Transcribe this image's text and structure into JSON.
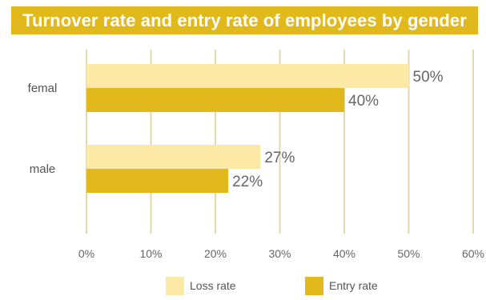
{
  "chart_data": {
    "type": "bar",
    "orientation": "horizontal",
    "title": "Turnover rate and entry rate of employees by gender",
    "categories": [
      "femal",
      "male"
    ],
    "series": [
      {
        "name": "Loss rate",
        "values": [
          50,
          27
        ],
        "color": "#fde9a6"
      },
      {
        "name": "Entry rate",
        "values": [
          40,
          22
        ],
        "color": "#e2b91c"
      }
    ],
    "data_labels": [
      [
        "50%",
        "27%"
      ],
      [
        "40%",
        "22%"
      ]
    ],
    "xlim": [
      0,
      60
    ],
    "x_ticks": [
      "0%",
      "10%",
      "20%",
      "30%",
      "40%",
      "50%",
      "60%"
    ],
    "x_tick_values": [
      0,
      10,
      20,
      30,
      40,
      50,
      60
    ],
    "grid": "vertical",
    "grid_color": "#e6d9a8",
    "legend_position": "bottom",
    "xlabel": "",
    "ylabel": ""
  }
}
